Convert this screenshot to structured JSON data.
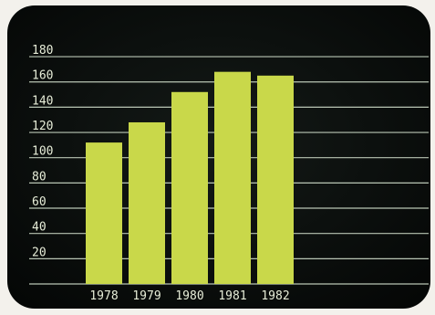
{
  "chart_data": {
    "type": "bar",
    "title": "",
    "xlabel": "",
    "ylabel": "",
    "categories": [
      "1978",
      "1979",
      "1980",
      "1981",
      "1982"
    ],
    "values": [
      112,
      128,
      152,
      168,
      165
    ],
    "ylim": [
      0,
      190
    ],
    "yticks": [
      20,
      40,
      60,
      80,
      100,
      120,
      140,
      160,
      180
    ],
    "grid": true,
    "legend": "none",
    "colors": {
      "bar": "#c9d84a",
      "grid": "#d8e6d2",
      "tick_text": "#e7edd8",
      "screen": "#0b0d0c",
      "bezel": "#151816"
    }
  }
}
